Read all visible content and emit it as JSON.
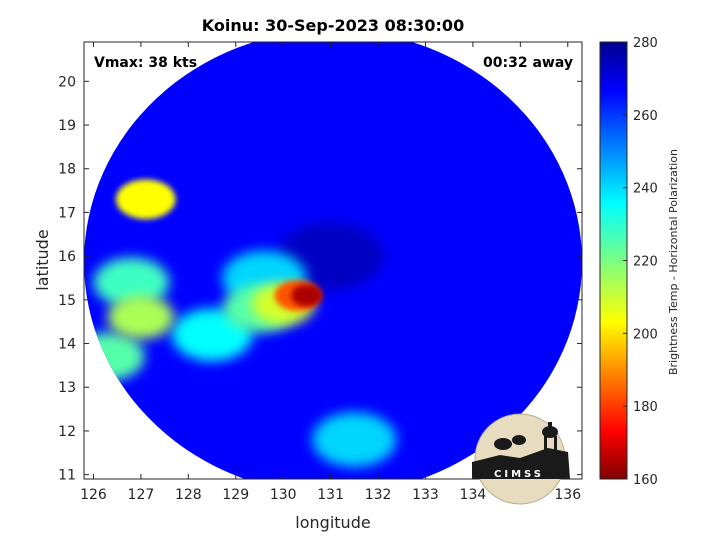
{
  "title": "Koinu: 30-Sep-2023 08:30:00",
  "annotations": {
    "vmax": "Vmax: 38 kts",
    "time_away": "00:32 away"
  },
  "axes": {
    "xlabel": "longitude",
    "ylabel": "latitude",
    "xlim": [
      125.8,
      136.3
    ],
    "ylim": [
      10.9,
      20.9
    ],
    "xticks": [
      "126",
      "127",
      "128",
      "129",
      "130",
      "131",
      "132",
      "133",
      "134",
      "135",
      "136"
    ],
    "yticks": [
      "11",
      "12",
      "13",
      "14",
      "15",
      "16",
      "17",
      "18",
      "19",
      "20"
    ]
  },
  "colorbar": {
    "label": "Brightness Temp - Horizontal Polarization",
    "range": [
      160,
      280
    ],
    "ticks": [
      "160",
      "180",
      "200",
      "220",
      "240",
      "260",
      "280"
    ],
    "colormap": "jet"
  },
  "swath": {
    "center_lon": 131.05,
    "center_lat": 15.75,
    "background_temp": 265,
    "features": [
      {
        "lon": 130.5,
        "lat": 15.1,
        "temp": 165
      },
      {
        "lon": 130.3,
        "lat": 15.1,
        "temp": 185
      },
      {
        "lon": 130.0,
        "lat": 14.9,
        "temp": 210
      },
      {
        "lon": 129.5,
        "lat": 14.8,
        "temp": 225
      },
      {
        "lon": 129.6,
        "lat": 15.5,
        "temp": 240
      },
      {
        "lon": 127.1,
        "lat": 17.3,
        "temp": 205
      },
      {
        "lon": 126.8,
        "lat": 15.4,
        "temp": 228
      },
      {
        "lon": 127.0,
        "lat": 14.6,
        "temp": 215
      },
      {
        "lon": 128.5,
        "lat": 14.2,
        "temp": 235
      },
      {
        "lon": 126.3,
        "lat": 13.7,
        "temp": 225
      },
      {
        "lon": 131.5,
        "lat": 11.8,
        "temp": 240
      },
      {
        "lon": 131.0,
        "lat": 16.0,
        "temp": 272
      }
    ]
  },
  "logo": {
    "text": "CIMSS"
  }
}
